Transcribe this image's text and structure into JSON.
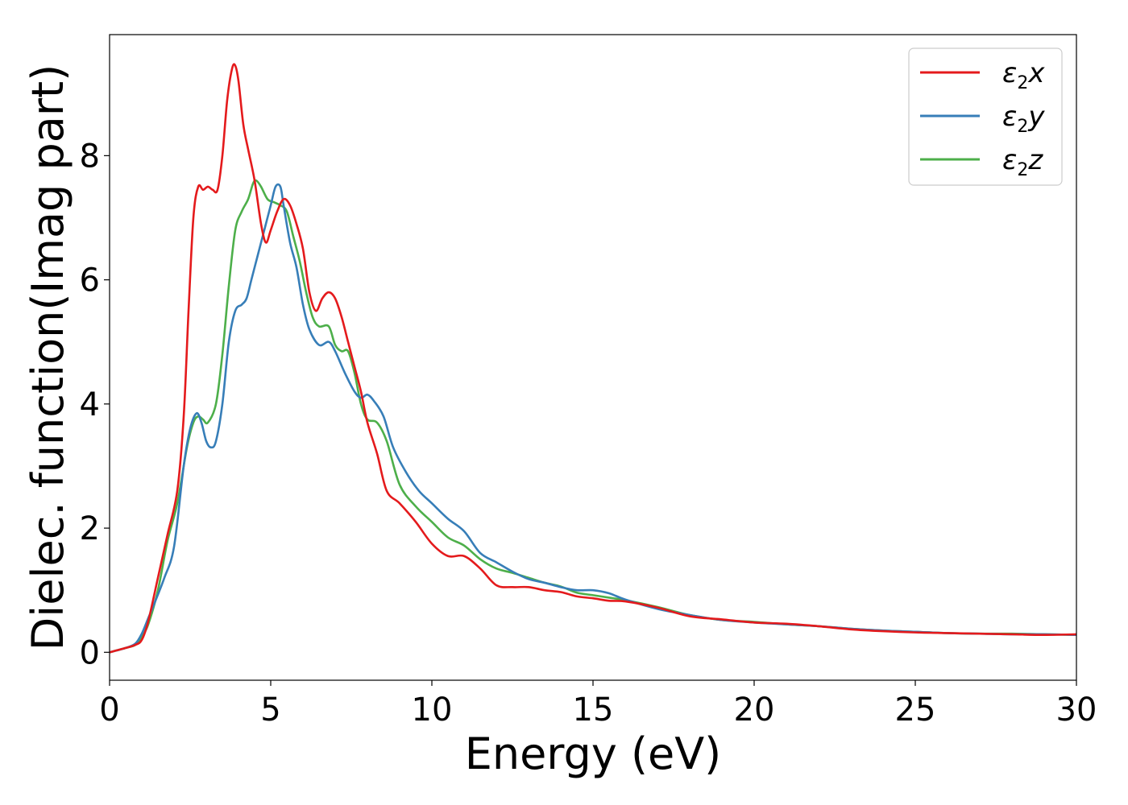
{
  "chart_data": {
    "type": "line",
    "title": "",
    "xlabel": "Energy (eV)",
    "ylabel": "Dielec. function(Imag part)",
    "xlim": [
      0,
      30
    ],
    "ylim": [
      -0.45,
      9.95
    ],
    "xticks": [
      0,
      5,
      10,
      15,
      20,
      25,
      30
    ],
    "yticks": [
      0,
      2,
      4,
      6,
      8
    ],
    "grid": false,
    "legend_position": "top-right",
    "series": [
      {
        "name": "ε₂x",
        "legend_base": "ε",
        "legend_sub": "2",
        "legend_tail": "x",
        "color": "#e41a1c",
        "x": [
          0,
          0.5,
          0.8,
          1.0,
          1.2,
          1.5,
          1.8,
          2.1,
          2.3,
          2.45,
          2.6,
          2.75,
          2.9,
          3.05,
          3.2,
          3.35,
          3.5,
          3.65,
          3.8,
          3.9,
          4.0,
          4.15,
          4.3,
          4.5,
          4.7,
          4.85,
          5.0,
          5.2,
          5.4,
          5.6,
          5.8,
          6.0,
          6.2,
          6.4,
          6.6,
          6.8,
          7.0,
          7.2,
          7.4,
          7.6,
          7.8,
          8.0,
          8.3,
          8.6,
          9.0,
          9.5,
          10.0,
          10.5,
          11.0,
          11.5,
          12.0,
          12.5,
          13.0,
          13.5,
          14.0,
          14.5,
          15.0,
          15.5,
          16.0,
          17.0,
          18.0,
          19.0,
          20.0,
          21.0,
          22.0,
          23.0,
          24.0,
          25.0,
          26.0,
          27.0,
          28.0,
          29.0,
          30.0
        ],
        "y": [
          0.0,
          0.07,
          0.12,
          0.2,
          0.5,
          1.2,
          1.9,
          2.6,
          3.8,
          5.5,
          7.0,
          7.5,
          7.45,
          7.5,
          7.45,
          7.45,
          8.0,
          8.9,
          9.4,
          9.45,
          9.2,
          8.5,
          8.1,
          7.6,
          6.9,
          6.6,
          6.8,
          7.1,
          7.3,
          7.2,
          6.9,
          6.5,
          5.8,
          5.5,
          5.7,
          5.8,
          5.7,
          5.4,
          5.0,
          4.6,
          4.2,
          3.7,
          3.2,
          2.6,
          2.4,
          2.1,
          1.75,
          1.55,
          1.55,
          1.35,
          1.08,
          1.05,
          1.05,
          1.0,
          0.97,
          0.9,
          0.87,
          0.83,
          0.82,
          0.72,
          0.58,
          0.53,
          0.48,
          0.46,
          0.42,
          0.37,
          0.34,
          0.32,
          0.31,
          0.3,
          0.29,
          0.28,
          0.29
        ]
      },
      {
        "name": "ε₂y",
        "legend_base": "ε",
        "legend_sub": "2",
        "legend_tail": "y",
        "color": "#377eb8",
        "x": [
          0,
          0.5,
          0.8,
          1.0,
          1.2,
          1.4,
          1.7,
          2.0,
          2.3,
          2.5,
          2.7,
          2.85,
          3.0,
          3.15,
          3.3,
          3.5,
          3.7,
          3.9,
          4.1,
          4.25,
          4.4,
          4.6,
          4.8,
          5.0,
          5.15,
          5.3,
          5.4,
          5.6,
          5.8,
          6.0,
          6.2,
          6.5,
          6.8,
          7.0,
          7.3,
          7.6,
          7.8,
          8.0,
          8.2,
          8.5,
          8.8,
          9.2,
          9.6,
          10.0,
          10.5,
          11.0,
          11.5,
          12.0,
          12.5,
          13.0,
          13.5,
          14.0,
          14.5,
          15.0,
          15.5,
          16.0,
          17.0,
          18.0,
          19.0,
          20.0,
          21.0,
          22.0,
          23.0,
          24.0,
          25.0,
          26.0,
          27.0,
          28.0,
          29.0,
          30.0
        ],
        "y": [
          0.0,
          0.07,
          0.14,
          0.3,
          0.55,
          0.8,
          1.2,
          1.7,
          3.0,
          3.6,
          3.85,
          3.7,
          3.4,
          3.3,
          3.4,
          4.0,
          5.0,
          5.5,
          5.6,
          5.7,
          6.0,
          6.4,
          6.8,
          7.2,
          7.5,
          7.5,
          7.2,
          6.6,
          6.2,
          5.6,
          5.2,
          4.95,
          5.0,
          4.85,
          4.5,
          4.2,
          4.1,
          4.15,
          4.05,
          3.8,
          3.3,
          2.9,
          2.6,
          2.4,
          2.15,
          1.95,
          1.6,
          1.45,
          1.3,
          1.18,
          1.12,
          1.05,
          1.0,
          1.0,
          0.95,
          0.85,
          0.7,
          0.6,
          0.52,
          0.48,
          0.45,
          0.42,
          0.38,
          0.35,
          0.33,
          0.31,
          0.3,
          0.29,
          0.29,
          0.28
        ]
      },
      {
        "name": "ε₂z",
        "legend_base": "ε",
        "legend_sub": "2",
        "legend_tail": "z",
        "color": "#4daf4a",
        "x": [
          0,
          0.5,
          0.8,
          1.0,
          1.2,
          1.5,
          1.8,
          2.1,
          2.4,
          2.6,
          2.75,
          2.9,
          3.05,
          3.3,
          3.5,
          3.7,
          3.9,
          4.1,
          4.3,
          4.45,
          4.55,
          4.7,
          4.9,
          5.1,
          5.3,
          5.5,
          5.7,
          5.9,
          6.1,
          6.3,
          6.5,
          6.8,
          7.0,
          7.2,
          7.4,
          7.6,
          7.8,
          8.0,
          8.3,
          8.6,
          9.0,
          9.5,
          10.0,
          10.5,
          11.0,
          11.5,
          12.0,
          12.5,
          13.0,
          13.5,
          14.0,
          14.5,
          15.0,
          15.5,
          16.0,
          17.0,
          18.0,
          19.0,
          20.0,
          21.0,
          22.0,
          23.0,
          24.0,
          25.0,
          26.0,
          27.0,
          28.0,
          29.0,
          30.0
        ],
        "y": [
          0.0,
          0.07,
          0.12,
          0.25,
          0.45,
          1.0,
          1.8,
          2.4,
          3.3,
          3.7,
          3.8,
          3.75,
          3.7,
          4.0,
          4.8,
          5.9,
          6.8,
          7.1,
          7.3,
          7.55,
          7.6,
          7.5,
          7.3,
          7.25,
          7.2,
          7.1,
          6.7,
          6.3,
          5.8,
          5.4,
          5.25,
          5.25,
          4.95,
          4.85,
          4.85,
          4.5,
          4.0,
          3.75,
          3.7,
          3.4,
          2.7,
          2.35,
          2.1,
          1.85,
          1.72,
          1.5,
          1.35,
          1.28,
          1.2,
          1.12,
          1.06,
          0.96,
          0.92,
          0.88,
          0.84,
          0.73,
          0.6,
          0.52,
          0.49,
          0.45,
          0.42,
          0.38,
          0.35,
          0.33,
          0.31,
          0.3,
          0.3,
          0.29,
          0.28
        ]
      }
    ]
  }
}
